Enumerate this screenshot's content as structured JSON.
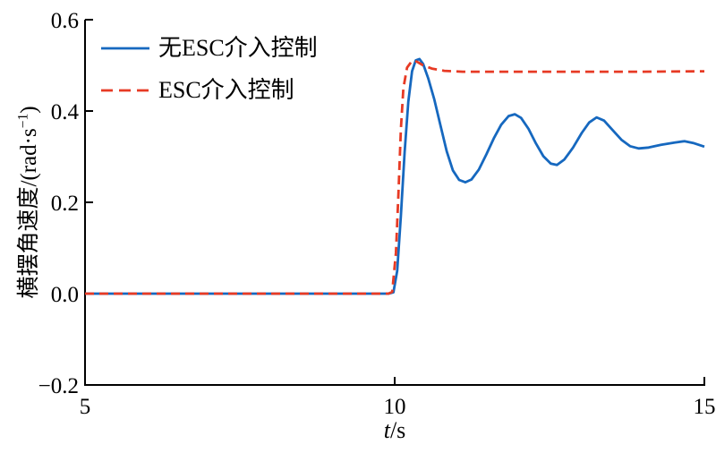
{
  "figure": {
    "background": "#ffffff",
    "spine_color": "#000000",
    "ylabel_main": "横摆角速度/(rad·s",
    "ylabel_sup": "−1",
    "ylabel_close": ")",
    "xlabel_italic": "t",
    "xlabel_rest": "/s"
  },
  "chart_data": {
    "type": "line",
    "title": "",
    "xlabel": "t/s",
    "ylabel": "横摆角速度/(rad·s−1)",
    "xlim": [
      5,
      15
    ],
    "ylim": [
      -0.2,
      0.6
    ],
    "xticks": [
      5,
      10,
      15
    ],
    "xtick_labels": [
      "5",
      "10",
      "15"
    ],
    "yticks": [
      -0.2,
      0,
      0.2,
      0.4,
      0.6
    ],
    "ytick_labels": [
      "−0.2",
      "0.0",
      "0.2",
      "0.4",
      "0.6"
    ],
    "grid": false,
    "legend_position": "upper-left-inside",
    "series": [
      {
        "name": "无ESC介入控制",
        "color": "#1668bf",
        "line_style": "solid",
        "line_width": 2.8,
        "points": [
          [
            5.0,
            0
          ],
          [
            6.0,
            0
          ],
          [
            7.0,
            0
          ],
          [
            8.0,
            0
          ],
          [
            9.0,
            0
          ],
          [
            9.6,
            0
          ],
          [
            9.9,
            0
          ],
          [
            9.98,
            0.003
          ],
          [
            10.04,
            0.05
          ],
          [
            10.1,
            0.17
          ],
          [
            10.16,
            0.31
          ],
          [
            10.22,
            0.42
          ],
          [
            10.28,
            0.487
          ],
          [
            10.34,
            0.511
          ],
          [
            10.4,
            0.514
          ],
          [
            10.46,
            0.503
          ],
          [
            10.54,
            0.472
          ],
          [
            10.64,
            0.425
          ],
          [
            10.74,
            0.368
          ],
          [
            10.84,
            0.312
          ],
          [
            10.94,
            0.27
          ],
          [
            11.04,
            0.249
          ],
          [
            11.14,
            0.244
          ],
          [
            11.24,
            0.25
          ],
          [
            11.36,
            0.272
          ],
          [
            11.48,
            0.305
          ],
          [
            11.6,
            0.34
          ],
          [
            11.72,
            0.37
          ],
          [
            11.84,
            0.389
          ],
          [
            11.94,
            0.393
          ],
          [
            12.04,
            0.385
          ],
          [
            12.16,
            0.361
          ],
          [
            12.28,
            0.329
          ],
          [
            12.4,
            0.301
          ],
          [
            12.52,
            0.285
          ],
          [
            12.62,
            0.282
          ],
          [
            12.74,
            0.294
          ],
          [
            12.88,
            0.32
          ],
          [
            13.02,
            0.352
          ],
          [
            13.14,
            0.375
          ],
          [
            13.26,
            0.386
          ],
          [
            13.38,
            0.379
          ],
          [
            13.52,
            0.358
          ],
          [
            13.66,
            0.337
          ],
          [
            13.8,
            0.323
          ],
          [
            13.94,
            0.318
          ],
          [
            14.1,
            0.32
          ],
          [
            14.3,
            0.326
          ],
          [
            14.52,
            0.331
          ],
          [
            14.68,
            0.334
          ],
          [
            14.82,
            0.33
          ],
          [
            15.0,
            0.322
          ]
        ]
      },
      {
        "name": "ESC介入控制",
        "color": "#e73a24",
        "line_style": "dashed",
        "line_width": 2.8,
        "points": [
          [
            5.0,
            0
          ],
          [
            6.0,
            0
          ],
          [
            7.0,
            0
          ],
          [
            8.0,
            0
          ],
          [
            9.0,
            0
          ],
          [
            9.6,
            0
          ],
          [
            9.9,
            0
          ],
          [
            9.96,
            0.004
          ],
          [
            10.02,
            0.09
          ],
          [
            10.06,
            0.22
          ],
          [
            10.1,
            0.36
          ],
          [
            10.14,
            0.45
          ],
          [
            10.2,
            0.495
          ],
          [
            10.28,
            0.51
          ],
          [
            10.36,
            0.508
          ],
          [
            10.46,
            0.5
          ],
          [
            10.6,
            0.493
          ],
          [
            10.8,
            0.488
          ],
          [
            11.1,
            0.486
          ],
          [
            11.6,
            0.486
          ],
          [
            12.2,
            0.486
          ],
          [
            13.0,
            0.486
          ],
          [
            14.0,
            0.486
          ],
          [
            15.0,
            0.487
          ]
        ]
      }
    ]
  }
}
